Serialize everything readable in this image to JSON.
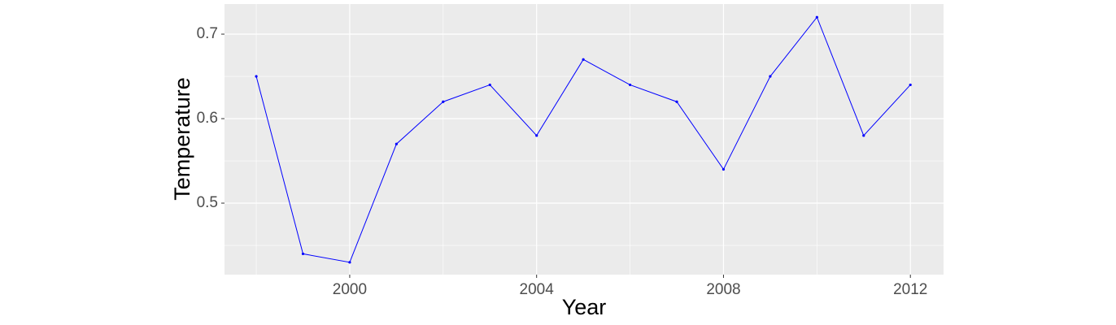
{
  "chart_data": {
    "type": "line",
    "x_label": "Year",
    "y_label": "Temperature",
    "x": [
      1998,
      1999,
      2000,
      2001,
      2002,
      2003,
      2004,
      2005,
      2006,
      2007,
      2008,
      2009,
      2010,
      2011,
      2012
    ],
    "values": [
      0.65,
      0.44,
      0.43,
      0.57,
      0.62,
      0.64,
      0.58,
      0.67,
      0.64,
      0.62,
      0.54,
      0.65,
      0.72,
      0.58,
      0.64
    ],
    "color": "#0000ff",
    "xlim": [
      1997.32,
      2012.71
    ],
    "ylim": [
      0.4154,
      0.7356
    ],
    "xticks": [
      2000,
      2004,
      2008,
      2012
    ],
    "yticks": [
      0.5,
      0.6,
      0.7
    ],
    "minor_xticks": [
      1998,
      2002,
      2006,
      2010
    ],
    "minor_yticks": [
      0.45,
      0.55,
      0.65
    ],
    "grid": true
  }
}
